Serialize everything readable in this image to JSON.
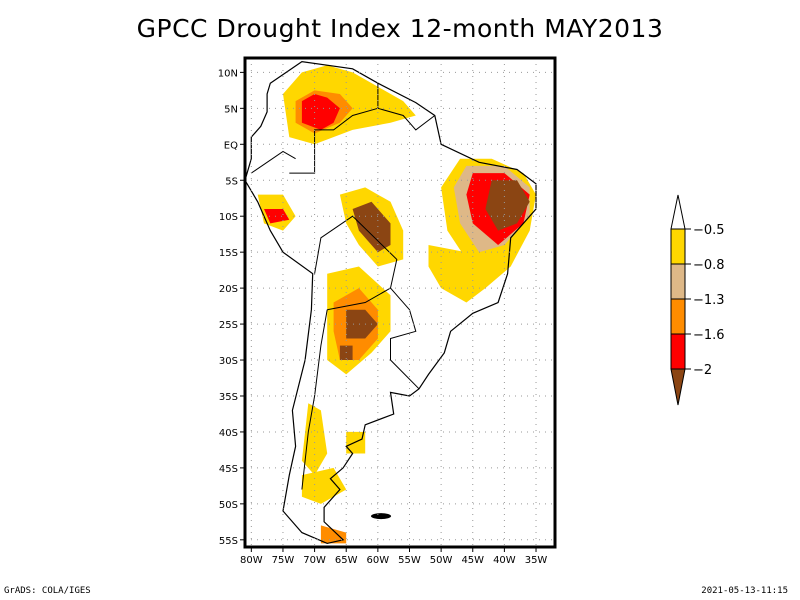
{
  "title": "GPCC Drought Index 12-month MAY2013",
  "footer": {
    "left": "GrADS: COLA/IGES",
    "right": "2021-05-13-11:15"
  },
  "map": {
    "region": "South America",
    "lon_range": [
      -81,
      -32
    ],
    "lat_range": [
      -56,
      12
    ],
    "lat_ticks": [
      {
        "value": 10,
        "label": "10N"
      },
      {
        "value": 5,
        "label": "5N"
      },
      {
        "value": 0,
        "label": "EQ"
      },
      {
        "value": -5,
        "label": "5S"
      },
      {
        "value": -10,
        "label": "10S"
      },
      {
        "value": -15,
        "label": "15S"
      },
      {
        "value": -20,
        "label": "20S"
      },
      {
        "value": -25,
        "label": "25S"
      },
      {
        "value": -30,
        "label": "30S"
      },
      {
        "value": -35,
        "label": "35S"
      },
      {
        "value": -40,
        "label": "40S"
      },
      {
        "value": -45,
        "label": "45S"
      },
      {
        "value": -50,
        "label": "50S"
      },
      {
        "value": -55,
        "label": "55S"
      }
    ],
    "lon_ticks": [
      {
        "value": -80,
        "label": "80W"
      },
      {
        "value": -75,
        "label": "75W"
      },
      {
        "value": -70,
        "label": "70W"
      },
      {
        "value": -65,
        "label": "65W"
      },
      {
        "value": -60,
        "label": "60W"
      },
      {
        "value": -55,
        "label": "55W"
      },
      {
        "value": -50,
        "label": "50W"
      },
      {
        "value": -45,
        "label": "45W"
      },
      {
        "value": -40,
        "label": "40W"
      },
      {
        "value": -35,
        "label": "35W"
      }
    ],
    "grid": true
  },
  "legend": {
    "orientation": "vertical",
    "placement": "right",
    "levels": [
      "-0.5",
      "-0.8",
      "-1.3",
      "-1.6",
      "-2"
    ],
    "colors": {
      "above": "#ffffff",
      "bins": [
        "#ffd700",
        "#deb887",
        "#ff8c00",
        "#ff0000"
      ],
      "below": "#8b4513"
    }
  },
  "drought_regions": [
    {
      "name": "venezuela-colombia",
      "cls": 4,
      "pts": [
        [
          -72,
          6
        ],
        [
          -70,
          7
        ],
        [
          -68,
          6.5
        ],
        [
          -66,
          5
        ],
        [
          -67,
          3
        ],
        [
          -69,
          2
        ],
        [
          -72,
          3
        ]
      ]
    },
    {
      "name": "venezuela-colombia-mid",
      "cls": 3,
      "pts": [
        [
          -73,
          6
        ],
        [
          -70,
          7.5
        ],
        [
          -66,
          7
        ],
        [
          -64,
          5
        ],
        [
          -66,
          3
        ],
        [
          -70,
          1.5
        ],
        [
          -73,
          3
        ]
      ]
    },
    {
      "name": "venezuela-colombia-outer",
      "cls": 1,
      "pts": [
        [
          -75,
          7
        ],
        [
          -72,
          10
        ],
        [
          -68,
          11
        ],
        [
          -64,
          10
        ],
        [
          -60,
          8
        ],
        [
          -56,
          6
        ],
        [
          -54,
          4
        ],
        [
          -58,
          3
        ],
        [
          -64,
          2
        ],
        [
          -70,
          0
        ],
        [
          -74,
          1
        ]
      ]
    },
    {
      "name": "ne-brazil-outer",
      "cls": 1,
      "pts": [
        [
          -47,
          -2
        ],
        [
          -42,
          -2
        ],
        [
          -37,
          -4
        ],
        [
          -35,
          -7
        ],
        [
          -36,
          -12
        ],
        [
          -39,
          -17
        ],
        [
          -43,
          -20
        ],
        [
          -46,
          -16
        ],
        [
          -49,
          -12
        ],
        [
          -50,
          -6
        ]
      ]
    },
    {
      "name": "ne-brazil-mid",
      "cls": 2,
      "pts": [
        [
          -46,
          -3
        ],
        [
          -40,
          -3
        ],
        [
          -36,
          -6
        ],
        [
          -36,
          -10
        ],
        [
          -40,
          -14
        ],
        [
          -44,
          -15
        ],
        [
          -47,
          -11
        ],
        [
          -48,
          -6
        ]
      ]
    },
    {
      "name": "ne-brazil-red",
      "cls": 4,
      "pts": [
        [
          -45,
          -4
        ],
        [
          -40,
          -4
        ],
        [
          -36,
          -7
        ],
        [
          -37,
          -11
        ],
        [
          -41,
          -14
        ],
        [
          -45,
          -11
        ],
        [
          -46,
          -7
        ]
      ]
    },
    {
      "name": "ne-brazil-core",
      "cls": 5,
      "pts": [
        [
          -42,
          -5
        ],
        [
          -38,
          -5
        ],
        [
          -36,
          -8
        ],
        [
          -38,
          -11
        ],
        [
          -41,
          -12
        ],
        [
          -43,
          -9
        ]
      ]
    },
    {
      "name": "central-brazil-outer",
      "cls": 1,
      "pts": [
        [
          -66,
          -7
        ],
        [
          -62,
          -6
        ],
        [
          -58,
          -8
        ],
        [
          -56,
          -12
        ],
        [
          -56,
          -16
        ],
        [
          -60,
          -17
        ],
        [
          -63,
          -14
        ],
        [
          -65,
          -11
        ]
      ]
    },
    {
      "name": "central-brazil-core",
      "cls": 5,
      "pts": [
        [
          -64,
          -9
        ],
        [
          -61,
          -8
        ],
        [
          -58,
          -11
        ],
        [
          -58,
          -14
        ],
        [
          -60,
          -15
        ],
        [
          -63,
          -12
        ]
      ]
    },
    {
      "name": "peru-outer",
      "cls": 1,
      "pts": [
        [
          -79,
          -7
        ],
        [
          -75,
          -7
        ],
        [
          -73,
          -10
        ],
        [
          -75,
          -12
        ],
        [
          -78,
          -11
        ]
      ]
    },
    {
      "name": "peru-core",
      "cls": 4,
      "pts": [
        [
          -78,
          -9
        ],
        [
          -75,
          -9
        ],
        [
          -74,
          -10.5
        ],
        [
          -77,
          -11
        ]
      ]
    },
    {
      "name": "paraguay-outer",
      "cls": 1,
      "pts": [
        [
          -68,
          -18
        ],
        [
          -63,
          -17
        ],
        [
          -58,
          -21
        ],
        [
          -58,
          -26
        ],
        [
          -61,
          -29
        ],
        [
          -65,
          -32
        ],
        [
          -68,
          -30
        ],
        [
          -68,
          -24
        ]
      ]
    },
    {
      "name": "paraguay-mid",
      "cls": 3,
      "pts": [
        [
          -67,
          -22
        ],
        [
          -63,
          -20
        ],
        [
          -60,
          -23
        ],
        [
          -60,
          -27
        ],
        [
          -63,
          -30
        ],
        [
          -66,
          -30
        ],
        [
          -67,
          -26
        ]
      ]
    },
    {
      "name": "paraguay-core",
      "cls": 5,
      "pts": [
        [
          -65,
          -23
        ],
        [
          -62,
          -23
        ],
        [
          -60,
          -25
        ],
        [
          -62,
          -27
        ],
        [
          -65,
          -27
        ]
      ]
    },
    {
      "name": "argentina-core",
      "cls": 5,
      "pts": [
        [
          -66,
          -28
        ],
        [
          -64,
          -28
        ],
        [
          -64,
          -30
        ],
        [
          -66,
          -30
        ]
      ]
    },
    {
      "name": "patagonia-north",
      "cls": 1,
      "pts": [
        [
          -71,
          -36
        ],
        [
          -69,
          -37
        ],
        [
          -68,
          -43
        ],
        [
          -70,
          -46
        ],
        [
          -72,
          -44
        ]
      ]
    },
    {
      "name": "patagonia-south",
      "cls": 1,
      "pts": [
        [
          -72,
          -46
        ],
        [
          -67,
          -45
        ],
        [
          -65,
          -48
        ],
        [
          -69,
          -50
        ],
        [
          -72,
          -49
        ]
      ]
    },
    {
      "name": "chubut",
      "cls": 1,
      "pts": [
        [
          -65,
          -40
        ],
        [
          -62,
          -40
        ],
        [
          -62,
          -43
        ],
        [
          -65,
          -43
        ]
      ]
    },
    {
      "name": "tierra-del-fuego",
      "cls": 3,
      "pts": [
        [
          -69,
          -53
        ],
        [
          -65,
          -54
        ],
        [
          -65,
          -55.5
        ],
        [
          -69,
          -55.5
        ]
      ]
    },
    {
      "name": "se-brazil",
      "cls": 1,
      "pts": [
        [
          -52,
          -14
        ],
        [
          -46,
          -15
        ],
        [
          -43,
          -20
        ],
        [
          -46,
          -22
        ],
        [
          -50,
          -20
        ],
        [
          -52,
          -17
        ]
      ]
    }
  ]
}
